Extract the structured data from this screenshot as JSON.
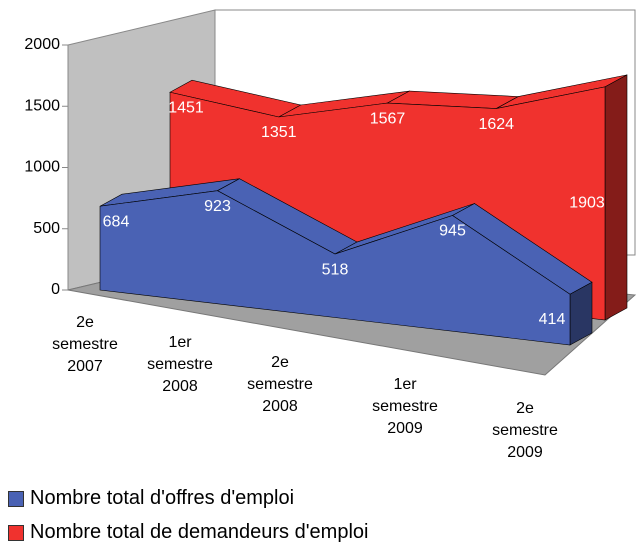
{
  "chart_data": {
    "type": "area3d",
    "categories": [
      "2e semestre 2007",
      "1er semestre 2008",
      "2e semestre 2008",
      "1er semestre 2009",
      "2e semestre 2009"
    ],
    "series": [
      {
        "name": "Nombre total d'offres d'emploi",
        "color": "#4a62b4",
        "values": [
          684,
          923,
          518,
          945,
          414
        ]
      },
      {
        "name": "Nombre total de demandeurs d'emploi",
        "color": "#f0322e",
        "values": [
          1451,
          1351,
          1567,
          1624,
          1903
        ]
      }
    ],
    "ylim": [
      0,
      2000
    ],
    "yticks": [
      0,
      500,
      1000,
      1500,
      2000
    ],
    "legend": "bottom"
  }
}
